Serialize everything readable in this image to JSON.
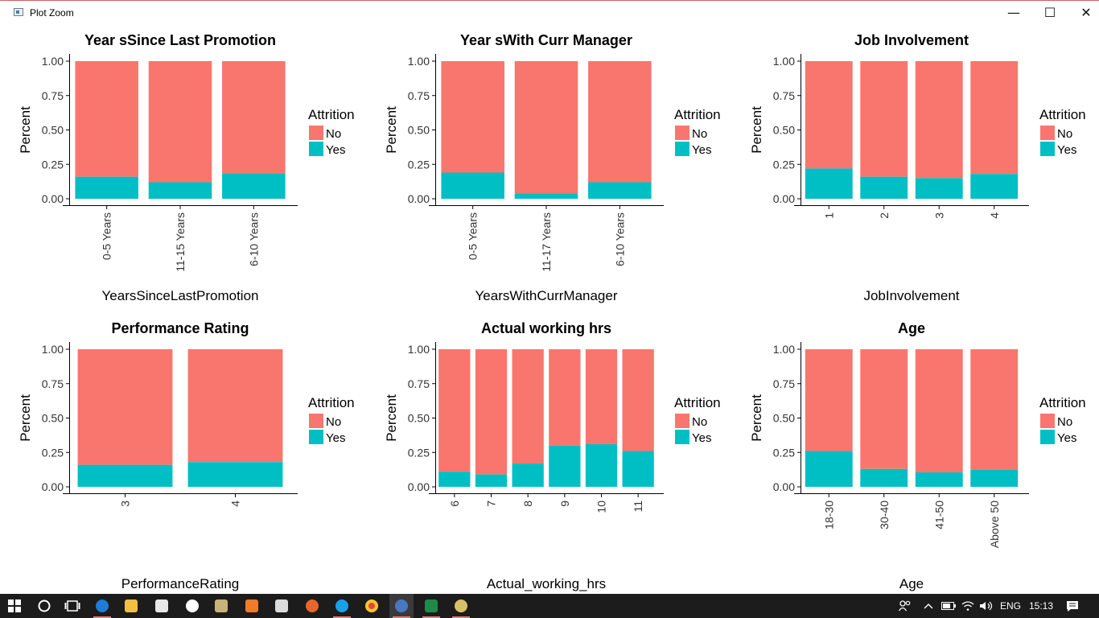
{
  "window": {
    "title": "Plot Zoom",
    "minimize_glyph": "—",
    "maximize_glyph": "☐",
    "close_glyph": "✕"
  },
  "colors": {
    "no": "#F8766D",
    "yes": "#00BFC4"
  },
  "chart_data": [
    {
      "type": "bar",
      "stacked": true,
      "title": "Year sSince Last Promotion",
      "xlabel": "YearsSinceLastPromotion",
      "ylabel": "Percent",
      "ylim": [
        0,
        1
      ],
      "yticks": [
        "0.00",
        "0.25",
        "0.50",
        "0.75",
        "1.00"
      ],
      "rotate_x_labels": true,
      "categories": [
        "0-5 Years",
        "11-15 Years",
        "6-10 Years"
      ],
      "legend": {
        "title": "Attrition",
        "position": "right"
      },
      "series": [
        {
          "name": "No",
          "values": [
            0.84,
            0.88,
            0.815
          ]
        },
        {
          "name": "Yes",
          "values": [
            0.16,
            0.12,
            0.185
          ]
        }
      ]
    },
    {
      "type": "bar",
      "stacked": true,
      "title": "Year sWith Curr Manager",
      "xlabel": "YearsWithCurrManager",
      "ylabel": "Percent",
      "ylim": [
        0,
        1
      ],
      "yticks": [
        "0.00",
        "0.25",
        "0.50",
        "0.75",
        "1.00"
      ],
      "rotate_x_labels": true,
      "categories": [
        "0-5 Years",
        "11-17 Years",
        "6-10 Years"
      ],
      "legend": {
        "title": "Attrition",
        "position": "right"
      },
      "series": [
        {
          "name": "No",
          "values": [
            0.81,
            0.96,
            0.88
          ]
        },
        {
          "name": "Yes",
          "values": [
            0.19,
            0.04,
            0.12
          ]
        }
      ]
    },
    {
      "type": "bar",
      "stacked": true,
      "title": "Job Involvement",
      "xlabel": "JobInvolvement",
      "ylabel": "Percent",
      "ylim": [
        0,
        1
      ],
      "yticks": [
        "0.00",
        "0.25",
        "0.50",
        "0.75",
        "1.00"
      ],
      "rotate_x_labels": true,
      "categories": [
        "1",
        "2",
        "3",
        "4"
      ],
      "legend": {
        "title": "Attrition",
        "position": "right"
      },
      "series": [
        {
          "name": "No",
          "values": [
            0.78,
            0.84,
            0.85,
            0.82
          ]
        },
        {
          "name": "Yes",
          "values": [
            0.22,
            0.16,
            0.15,
            0.18
          ]
        }
      ]
    },
    {
      "type": "bar",
      "stacked": true,
      "title": "Performance Rating",
      "xlabel": "PerformanceRating",
      "ylabel": "Percent",
      "ylim": [
        0,
        1
      ],
      "yticks": [
        "0.00",
        "0.25",
        "0.50",
        "0.75",
        "1.00"
      ],
      "rotate_x_labels": true,
      "categories": [
        "3",
        "4"
      ],
      "legend": {
        "title": "Attrition",
        "position": "right"
      },
      "series": [
        {
          "name": "No",
          "values": [
            0.84,
            0.82
          ]
        },
        {
          "name": "Yes",
          "values": [
            0.16,
            0.18
          ]
        }
      ]
    },
    {
      "type": "bar",
      "stacked": true,
      "title": "Actual working hrs",
      "xlabel": "Actual_working_hrs",
      "ylabel": "Percent",
      "ylim": [
        0,
        1
      ],
      "yticks": [
        "0.00",
        "0.25",
        "0.50",
        "0.75",
        "1.00"
      ],
      "rotate_x_labels": true,
      "categories": [
        "6",
        "7",
        "8",
        "9",
        "10",
        "11"
      ],
      "legend": {
        "title": "Attrition",
        "position": "right"
      },
      "series": [
        {
          "name": "No",
          "values": [
            0.89,
            0.91,
            0.83,
            0.7,
            0.69,
            0.74
          ]
        },
        {
          "name": "Yes",
          "values": [
            0.11,
            0.09,
            0.17,
            0.3,
            0.31,
            0.26
          ]
        }
      ]
    },
    {
      "type": "bar",
      "stacked": true,
      "title": "Age",
      "xlabel": "Age",
      "ylabel": "Percent",
      "ylim": [
        0,
        1
      ],
      "yticks": [
        "0.00",
        "0.25",
        "0.50",
        "0.75",
        "1.00"
      ],
      "rotate_x_labels": true,
      "categories": [
        "18-30",
        "30-40",
        "41-50",
        "Above 50"
      ],
      "legend": {
        "title": "Attrition",
        "position": "right"
      },
      "series": [
        {
          "name": "No",
          "values": [
            0.74,
            0.87,
            0.895,
            0.875
          ]
        },
        {
          "name": "Yes",
          "values": [
            0.26,
            0.13,
            0.105,
            0.125
          ]
        }
      ]
    }
  ],
  "taskbar": {
    "icons": [
      "windows-start-icon",
      "cortana-search-icon",
      "task-view-icon",
      "edge-icon",
      "file-explorer-icon",
      "store-icon",
      "hp-icon",
      "snipping-tool-icon",
      "xampp-icon",
      "mail-icon",
      "firefox-icon",
      "skype-icon",
      "chrome-icon",
      "r-icon",
      "excel-icon",
      "paint-icon"
    ],
    "language": "ENG",
    "time": "15:13"
  }
}
